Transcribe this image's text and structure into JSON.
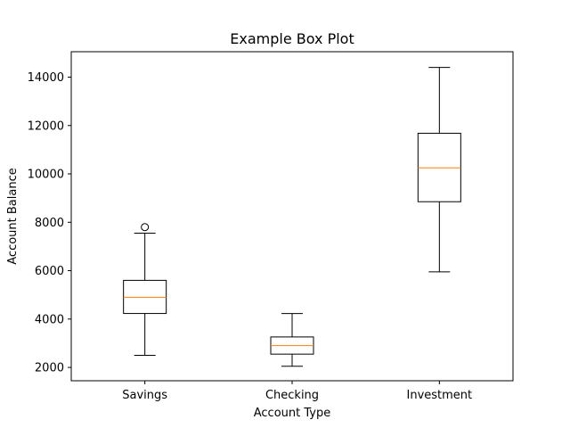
{
  "chart_data": {
    "type": "boxplot",
    "title": "Example Box Plot",
    "xlabel": "Account Type",
    "ylabel": "Account Balance",
    "ylim": [
      1450,
      15050
    ],
    "yticks": [
      2000,
      4000,
      6000,
      8000,
      10000,
      12000,
      14000
    ],
    "ytick_labels": [
      "2000",
      "4000",
      "6000",
      "8000",
      "10000",
      "12000",
      "14000"
    ],
    "categories": [
      "Savings",
      "Checking",
      "Investment"
    ],
    "boxes": [
      {
        "category": "Savings",
        "whisker_low": 2500,
        "q1": 4230,
        "median": 4900,
        "q3": 5600,
        "whisker_high": 7550,
        "outliers": [
          7800
        ]
      },
      {
        "category": "Checking",
        "whisker_low": 2050,
        "q1": 2550,
        "median": 2900,
        "q3": 3260,
        "whisker_high": 4230,
        "outliers": []
      },
      {
        "category": "Investment",
        "whisker_low": 5950,
        "q1": 8850,
        "median": 10250,
        "q3": 11680,
        "whisker_high": 14400,
        "outliers": []
      }
    ],
    "grid": false,
    "colors": {
      "box": "#000000",
      "median": "#ff7f0e",
      "outlier": "#000000"
    }
  }
}
